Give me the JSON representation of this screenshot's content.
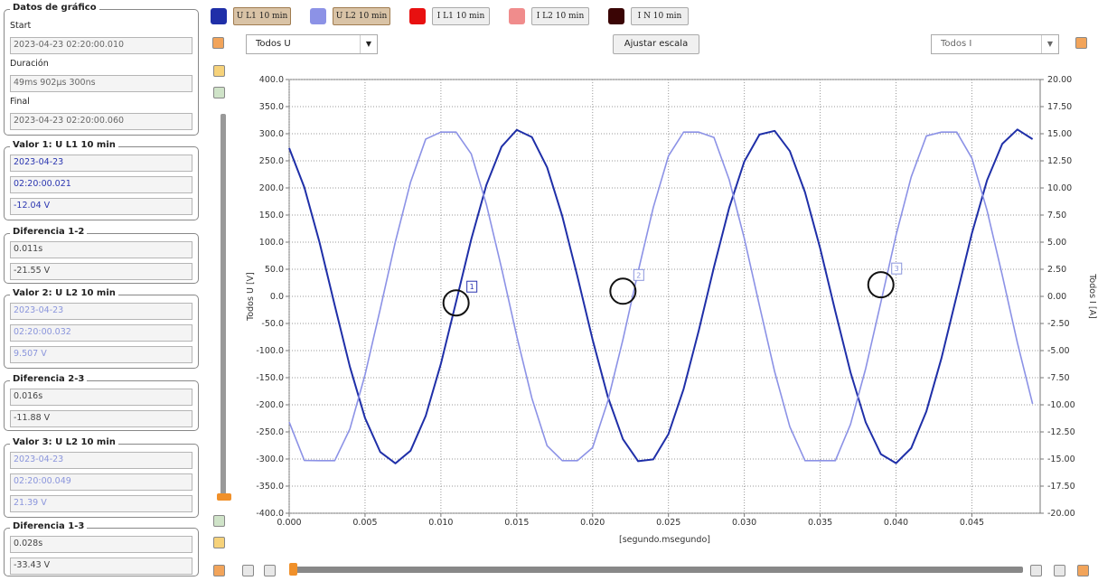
{
  "panel": {
    "chart_info": {
      "title": "Datos de gráfico",
      "start_label": "Start",
      "start": "2023-04-23 02:20:00.010",
      "duration_label": "Duración",
      "duration": "49ms 902µs 300ns",
      "final_label": "Final",
      "final": "2023-04-23 02:20:00.060"
    },
    "groups": [
      {
        "title": "Valor 1: U L1 10 min",
        "text_color": "#2a35b0",
        "fields": [
          "2023-04-23",
          "02:20:00.021",
          "-12.04 V"
        ]
      },
      {
        "title": "Diferencia 1-2",
        "text_color": "#444444",
        "fields": [
          "0.011s",
          "-21.55 V"
        ]
      },
      {
        "title": "Valor 2: U L2 10 min",
        "text_color": "#8a95dc",
        "fields": [
          "2023-04-23",
          "02:20:00.032",
          "9.507 V"
        ]
      },
      {
        "title": "Diferencia 2-3",
        "text_color": "#444444",
        "fields": [
          "0.016s",
          "-11.88 V"
        ]
      },
      {
        "title": "Valor 3: U L2 10 min",
        "text_color": "#8a95dc",
        "fields": [
          "2023-04-23",
          "02:20:00.049",
          "21.39 V"
        ]
      },
      {
        "title": "Diferencia 1-3",
        "text_color": "#444444",
        "fields": [
          "0.028s",
          "-33.43 V"
        ]
      }
    ]
  },
  "toolbar": {
    "u_select": "Todos U",
    "scale_button": "Ajustar escala",
    "i_select": "Todos I"
  },
  "chart_data": {
    "type": "line",
    "ylabel": "Todos U [V]",
    "y2label": "Todos I [A]",
    "xlabel": "[segundo.msegundo]",
    "x": [
      0,
      0.001,
      0.002,
      0.003,
      0.004,
      0.005,
      0.006,
      0.007,
      0.008,
      0.009,
      0.01,
      0.011,
      0.012,
      0.013,
      0.014,
      0.015,
      0.016,
      0.017,
      0.018,
      0.019,
      0.02,
      0.021,
      0.022,
      0.023,
      0.024,
      0.025,
      0.026,
      0.027,
      0.028,
      0.029,
      0.03,
      0.031,
      0.032,
      0.033,
      0.034,
      0.035,
      0.036,
      0.037,
      0.038,
      0.039,
      0.04,
      0.041,
      0.042,
      0.043,
      0.044,
      0.045,
      0.046,
      0.047,
      0.048,
      0.049
    ],
    "series": [
      {
        "name": "U L1 10 min",
        "color": "#1f2fa8",
        "values": [
          273.5,
          201.1,
          99.6,
          -16.2,
          -129.7,
          -224.5,
          -286.9,
          -308.0,
          -284.7,
          -220.4,
          -124.3,
          -10.3,
          105.2,
          205.6,
          276.2,
          307.1,
          293.7,
          238.0,
          148.0,
          36.7,
          -79.9,
          -185.0,
          -263.5,
          -304.0,
          -300.6,
          -253.9,
          -170.7,
          -62.8,
          54.1,
          163.2,
          248.8,
          298.5,
          305.3,
          268.0,
          192.1,
          88.5,
          -27.9,
          -140.2,
          -232.3,
          -291.0,
          -307.7,
          -280.0,
          -212.0,
          -113.4,
          1.4,
          116.2,
          214.2,
          281.2,
          307.8,
          290.0
        ]
      },
      {
        "name": "U L2 10 min",
        "color": "#8c92e6",
        "values": [
          -231.7,
          -302.6,
          -303,
          -303,
          -244.7,
          -144.6,
          -23.6,
          100.8,
          210.7,
          290.1,
          303,
          303,
          262.8,
          169.5,
          51.7,
          -73.5,
          -188.1,
          -275.6,
          -303,
          -303,
          -279.0,
          -193.3,
          -79.5,
          45.6,
          164.1,
          259.0,
          303,
          303,
          293.1,
          215.4,
          106.7,
          -17.4,
          -139.0,
          -240.5,
          -303,
          -303,
          -303,
          -236.0,
          -133.1,
          -11.0,
          112.8,
          220.3,
          295.9,
          303,
          303,
          254.9,
          158.5,
          39.2,
          -85.7,
          -198.3
        ]
      }
    ],
    "other_channels": [
      {
        "name": "I L1 10 min",
        "color": "#e81010"
      },
      {
        "name": "I L2 10 min",
        "color": "#f08c8c"
      },
      {
        "name": "I N 10 min",
        "color": "#3a0505"
      }
    ],
    "markers": [
      {
        "label": "1",
        "x": 0.011,
        "y": -12.04
      },
      {
        "label": "2",
        "x": 0.022,
        "y": 9.507
      },
      {
        "label": "3",
        "x": 0.039,
        "y": 21.39
      }
    ],
    "xlim": [
      0,
      0.0495
    ],
    "xticks": [
      {
        "value": 0,
        "label": "0.000"
      },
      {
        "value": 0.005,
        "label": "0.005"
      },
      {
        "value": 0.01,
        "label": "0.010"
      },
      {
        "value": 0.015,
        "label": "0.015"
      },
      {
        "value": 0.02,
        "label": "0.020"
      },
      {
        "value": 0.025,
        "label": "0.025"
      },
      {
        "value": 0.03,
        "label": "0.030"
      },
      {
        "value": 0.035,
        "label": "0.035"
      },
      {
        "value": 0.04,
        "label": "0.040"
      },
      {
        "value": 0.045,
        "label": "0.045"
      }
    ],
    "ylim": [
      -400,
      400
    ],
    "yticks": [
      {
        "value": 400,
        "label": "400.0"
      },
      {
        "value": 350,
        "label": "350.0"
      },
      {
        "value": 300,
        "label": "300.0"
      },
      {
        "value": 250,
        "label": "250.0"
      },
      {
        "value": 200,
        "label": "200.0"
      },
      {
        "value": 150,
        "label": "150.0"
      },
      {
        "value": 100,
        "label": "100.0"
      },
      {
        "value": 50,
        "label": "50.0"
      },
      {
        "value": 0,
        "label": "0.0"
      },
      {
        "value": -50,
        "label": "-50.0"
      },
      {
        "value": -100,
        "label": "-100.0"
      },
      {
        "value": -150,
        "label": "-150.0"
      },
      {
        "value": -200,
        "label": "-200.0"
      },
      {
        "value": -250,
        "label": "-250.0"
      },
      {
        "value": -300,
        "label": "-300.0"
      },
      {
        "value": -350,
        "label": "-350.0"
      },
      {
        "value": -400,
        "label": "-400.0"
      }
    ],
    "y2lim": [
      -20,
      20
    ],
    "y2ticks": [
      {
        "value": 20,
        "label": "20.00"
      },
      {
        "value": 17.5,
        "label": "17.50"
      },
      {
        "value": 15,
        "label": "15.00"
      },
      {
        "value": 12.5,
        "label": "12.50"
      },
      {
        "value": 10,
        "label": "10.00"
      },
      {
        "value": 7.5,
        "label": "7.50"
      },
      {
        "value": 5,
        "label": "5.00"
      },
      {
        "value": 2.5,
        "label": "2.50"
      },
      {
        "value": 0,
        "label": "0.00"
      },
      {
        "value": -2.5,
        "label": "-2.50"
      },
      {
        "value": -5,
        "label": "-5.00"
      },
      {
        "value": -7.5,
        "label": "-7.50"
      },
      {
        "value": -10,
        "label": "-10.00"
      },
      {
        "value": -12.5,
        "label": "-12.50"
      },
      {
        "value": -15,
        "label": "-15.00"
      },
      {
        "value": -17.5,
        "label": "-17.50"
      },
      {
        "value": -20,
        "label": "-20.00"
      }
    ],
    "grid": true
  }
}
